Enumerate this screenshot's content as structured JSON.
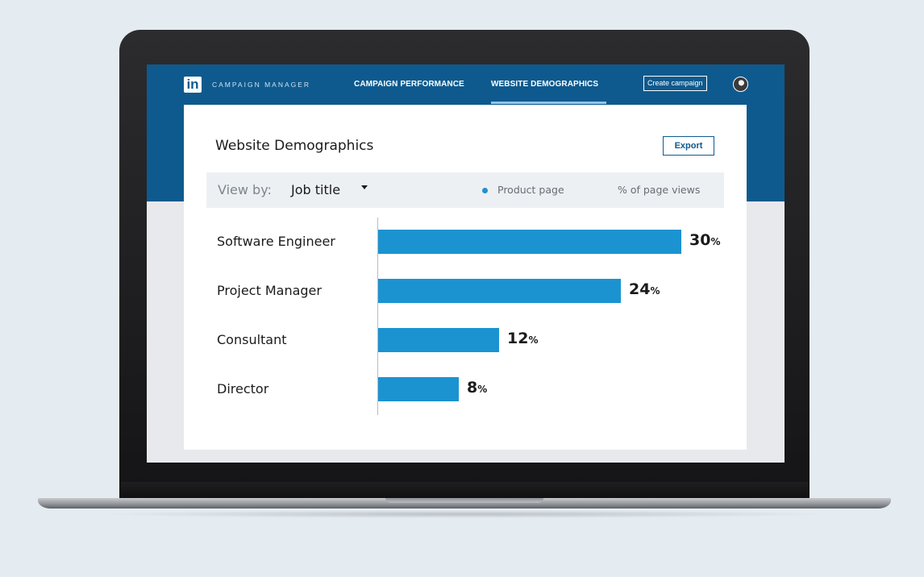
{
  "nav": {
    "logo_text": "in",
    "brand": "CAMPAIGN MANAGER",
    "tabs": [
      {
        "label": "CAMPAIGN PERFORMANCE",
        "active": false
      },
      {
        "label": "WEBSITE DEMOGRAPHICS",
        "active": true
      }
    ],
    "create_button": "Create campaign",
    "avatar_icon": "user-avatar-icon"
  },
  "card": {
    "title": "Website Demographics",
    "export_button": "Export"
  },
  "filter": {
    "view_by_label": "View by:",
    "view_by_value": "Job title",
    "legend": "Product page",
    "metric": "% of page views"
  },
  "colors": {
    "nav": "#0e5a8e",
    "bar": "#1b93d1"
  },
  "chart_data": {
    "type": "bar",
    "orientation": "horizontal",
    "categories": [
      "Software Engineer",
      "Project Manager",
      "Consultant",
      "Director"
    ],
    "series": [
      {
        "name": "Product page",
        "values": [
          30,
          24,
          12,
          8
        ]
      }
    ],
    "unit": "%",
    "xlim": [
      0,
      30
    ],
    "grid": false,
    "legend": "top-right"
  }
}
